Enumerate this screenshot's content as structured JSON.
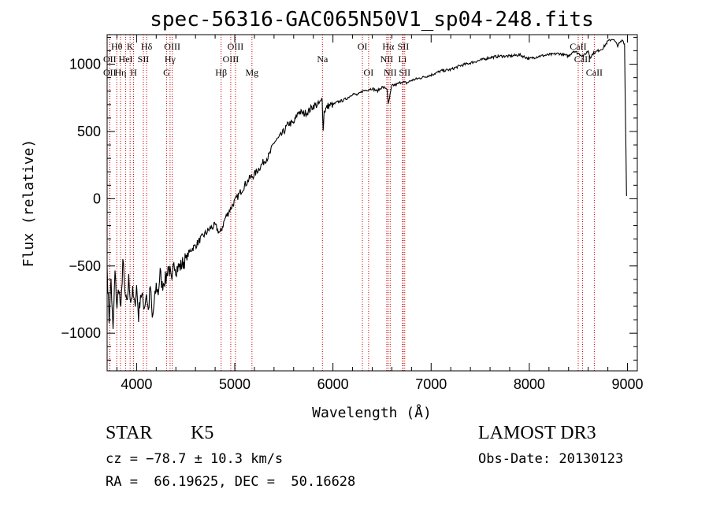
{
  "chart_data": {
    "type": "line",
    "title": "spec-56316-GAC065N50V1_sp04-248.fits",
    "xlabel": "Wavelength (Å)",
    "ylabel": "Flux (relative)",
    "xlim": [
      3700,
      9100
    ],
    "ylim": [
      -1280,
      1220
    ],
    "xticks": [
      4000,
      5000,
      6000,
      7000,
      8000,
      9000
    ],
    "yticks": [
      -1000,
      -500,
      0,
      500,
      1000
    ],
    "xtick_labels": [
      "4000",
      "5000",
      "6000",
      "7000",
      "8000",
      "9000"
    ],
    "ytick_labels": [
      "−1000",
      "−500",
      "0",
      "500",
      "1000"
    ],
    "series": [
      {
        "name": "spectrum",
        "x": [
          3700,
          3720,
          3740,
          3760,
          3780,
          3800,
          3820,
          3840,
          3860,
          3880,
          3900,
          3920,
          3940,
          3960,
          3980,
          4000,
          4020,
          4040,
          4060,
          4080,
          4100,
          4120,
          4140,
          4160,
          4180,
          4200,
          4220,
          4240,
          4260,
          4280,
          4300,
          4320,
          4340,
          4360,
          4380,
          4400,
          4450,
          4500,
          4550,
          4600,
          4650,
          4700,
          4750,
          4800,
          4850,
          4900,
          4950,
          5000,
          5050,
          5100,
          5150,
          5200,
          5250,
          5300,
          5350,
          5400,
          5450,
          5500,
          5550,
          5600,
          5650,
          5700,
          5750,
          5800,
          5850,
          5880,
          5890,
          5900,
          5910,
          5950,
          6000,
          6050,
          6100,
          6150,
          6200,
          6250,
          6300,
          6350,
          6400,
          6450,
          6500,
          6550,
          6563,
          6600,
          6650,
          6700,
          6750,
          6800,
          6900,
          7000,
          7100,
          7200,
          7300,
          7400,
          7500,
          7600,
          7700,
          7800,
          7900,
          8000,
          8100,
          8200,
          8300,
          8400,
          8450,
          8500,
          8550,
          8600,
          8620,
          8650,
          8700,
          8750,
          8800,
          8850,
          8900,
          8950,
          8970,
          8990
        ],
        "y": [
          -500,
          -900,
          -600,
          -1000,
          -550,
          -800,
          -650,
          -850,
          -450,
          -700,
          -800,
          -600,
          -750,
          -700,
          -800,
          -650,
          -880,
          -700,
          -750,
          -800,
          -700,
          -840,
          -650,
          -900,
          -780,
          -650,
          -700,
          -550,
          -650,
          -600,
          -600,
          -500,
          -550,
          -650,
          -450,
          -520,
          -500,
          -450,
          -380,
          -350,
          -300,
          -260,
          -220,
          -200,
          -260,
          -150,
          -80,
          -20,
          40,
          100,
          150,
          180,
          230,
          280,
          320,
          420,
          450,
          500,
          560,
          560,
          650,
          630,
          650,
          690,
          700,
          720,
          760,
          500,
          650,
          690,
          700,
          720,
          730,
          750,
          780,
          770,
          800,
          810,
          820,
          800,
          830,
          820,
          700,
          840,
          850,
          870,
          860,
          880,
          900,
          920,
          950,
          960,
          990,
          1010,
          1030,
          1050,
          1060,
          1060,
          1070,
          1040,
          1060,
          1070,
          1080,
          1060,
          1100,
          1080,
          1060,
          1100,
          1050,
          1080,
          1100,
          1120,
          1170,
          1190,
          1140,
          1180,
          1150,
          20
        ]
      }
    ],
    "lines": [
      {
        "name": "Hθ",
        "wave": 3798,
        "row": 0
      },
      {
        "name": "OII",
        "wave": 3727,
        "row": 1
      },
      {
        "name": "OII",
        "wave": 3727,
        "row": 2
      },
      {
        "name": "Hη",
        "wave": 3836,
        "row": 2
      },
      {
        "name": "HeI",
        "wave": 3889,
        "row": 1
      },
      {
        "name": "K",
        "wave": 3934,
        "row": 0
      },
      {
        "name": "SII",
        "wave": 4069,
        "row": 1
      },
      {
        "name": "H",
        "wave": 3969,
        "row": 2
      },
      {
        "name": "Hδ",
        "wave": 4102,
        "row": 0
      },
      {
        "name": "OIII",
        "wave": 4363,
        "row": 0
      },
      {
        "name": "Hγ",
        "wave": 4341,
        "row": 1
      },
      {
        "name": "G",
        "wave": 4305,
        "row": 2
      },
      {
        "name": "Hβ",
        "wave": 4861,
        "row": 2
      },
      {
        "name": "OIII",
        "wave": 5007,
        "row": 0
      },
      {
        "name": "OIII",
        "wave": 4959,
        "row": 1
      },
      {
        "name": "Mg",
        "wave": 5175,
        "row": 2
      },
      {
        "name": "Na",
        "wave": 5893,
        "row": 1
      },
      {
        "name": "OI",
        "wave": 6300,
        "row": 0
      },
      {
        "name": "OI",
        "wave": 6363,
        "row": 2
      },
      {
        "name": "Hα",
        "wave": 6563,
        "row": 0
      },
      {
        "name": "SII",
        "wave": 6716,
        "row": 0
      },
      {
        "name": "NII",
        "wave": 6548,
        "row": 1
      },
      {
        "name": "Li",
        "wave": 6708,
        "row": 1
      },
      {
        "name": "NII",
        "wave": 6583,
        "row": 2
      },
      {
        "name": "SII",
        "wave": 6731,
        "row": 2
      },
      {
        "name": "CaII",
        "wave": 8498,
        "row": 0
      },
      {
        "name": "CaII",
        "wave": 8542,
        "row": 1
      },
      {
        "name": "CaII",
        "wave": 8662,
        "row": 2
      }
    ]
  },
  "info": {
    "object_class": "STAR",
    "subclass": "K5",
    "cz": "cz = −78.7 ± 10.3 km/s",
    "radec": "RA =  66.19625, DEC =  50.16628",
    "survey": "LAMOST DR3",
    "obs_date": "Obs-Date: 20130123"
  },
  "colors": {
    "spectrum": "#000000",
    "line_markers": "#cc0000",
    "axes": "#000000",
    "background": "#ffffff"
  }
}
